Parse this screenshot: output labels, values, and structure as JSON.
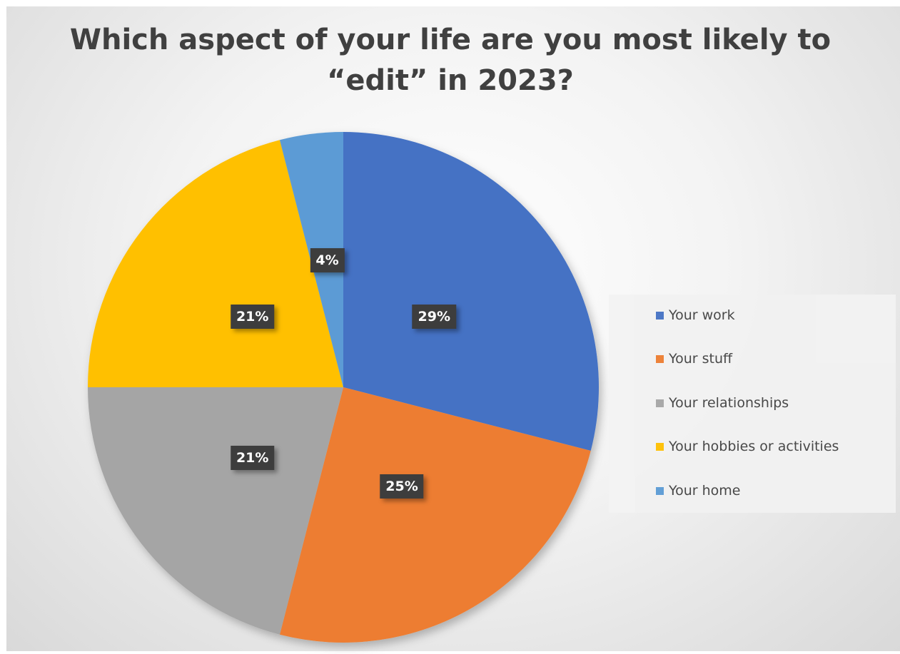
{
  "chart_data": {
    "type": "pie",
    "title_lines": [
      "Which aspect of your life are you most likely to",
      "“edit” in 2023?"
    ],
    "categories": [
      "Your work",
      "Your stuff",
      "Your relationships",
      "Your hobbies or activities",
      "Your home"
    ],
    "values": [
      29,
      25,
      21,
      21,
      4
    ],
    "data_labels": [
      "29%",
      "25%",
      "21%",
      "21%",
      "4%"
    ],
    "colors": [
      "#4472c4",
      "#ed7d31",
      "#a5a5a5",
      "#ffc000",
      "#5b9bd5"
    ],
    "start_angle": "12 o'clock",
    "direction": "clockwise",
    "legend_position": "right"
  }
}
